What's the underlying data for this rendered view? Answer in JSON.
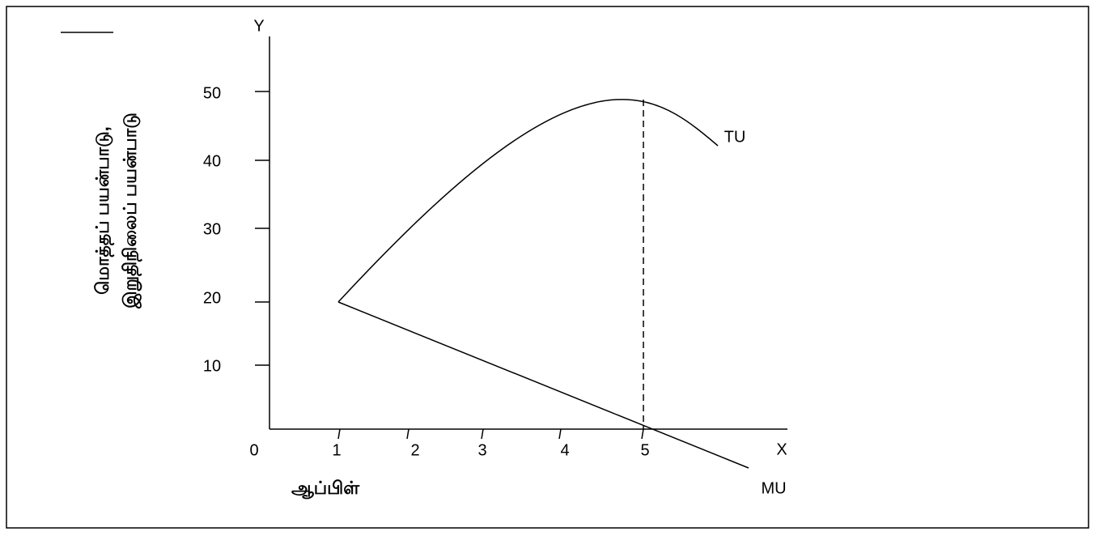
{
  "axis": {
    "y_name": "Y",
    "x_name": "X",
    "origin": "0",
    "y_label": [
      "மொத்தப் பயன்பாடு,",
      "இறுதிநிலைப் பயன்பாடு"
    ],
    "x_label": "ஆப்பிள்",
    "y_ticks": [
      "50",
      "40",
      "30",
      "20",
      "10"
    ],
    "x_ticks": [
      "1",
      "2",
      "3",
      "4",
      "5"
    ]
  },
  "curves": {
    "tu": "TU",
    "mu": "MU"
  }
}
